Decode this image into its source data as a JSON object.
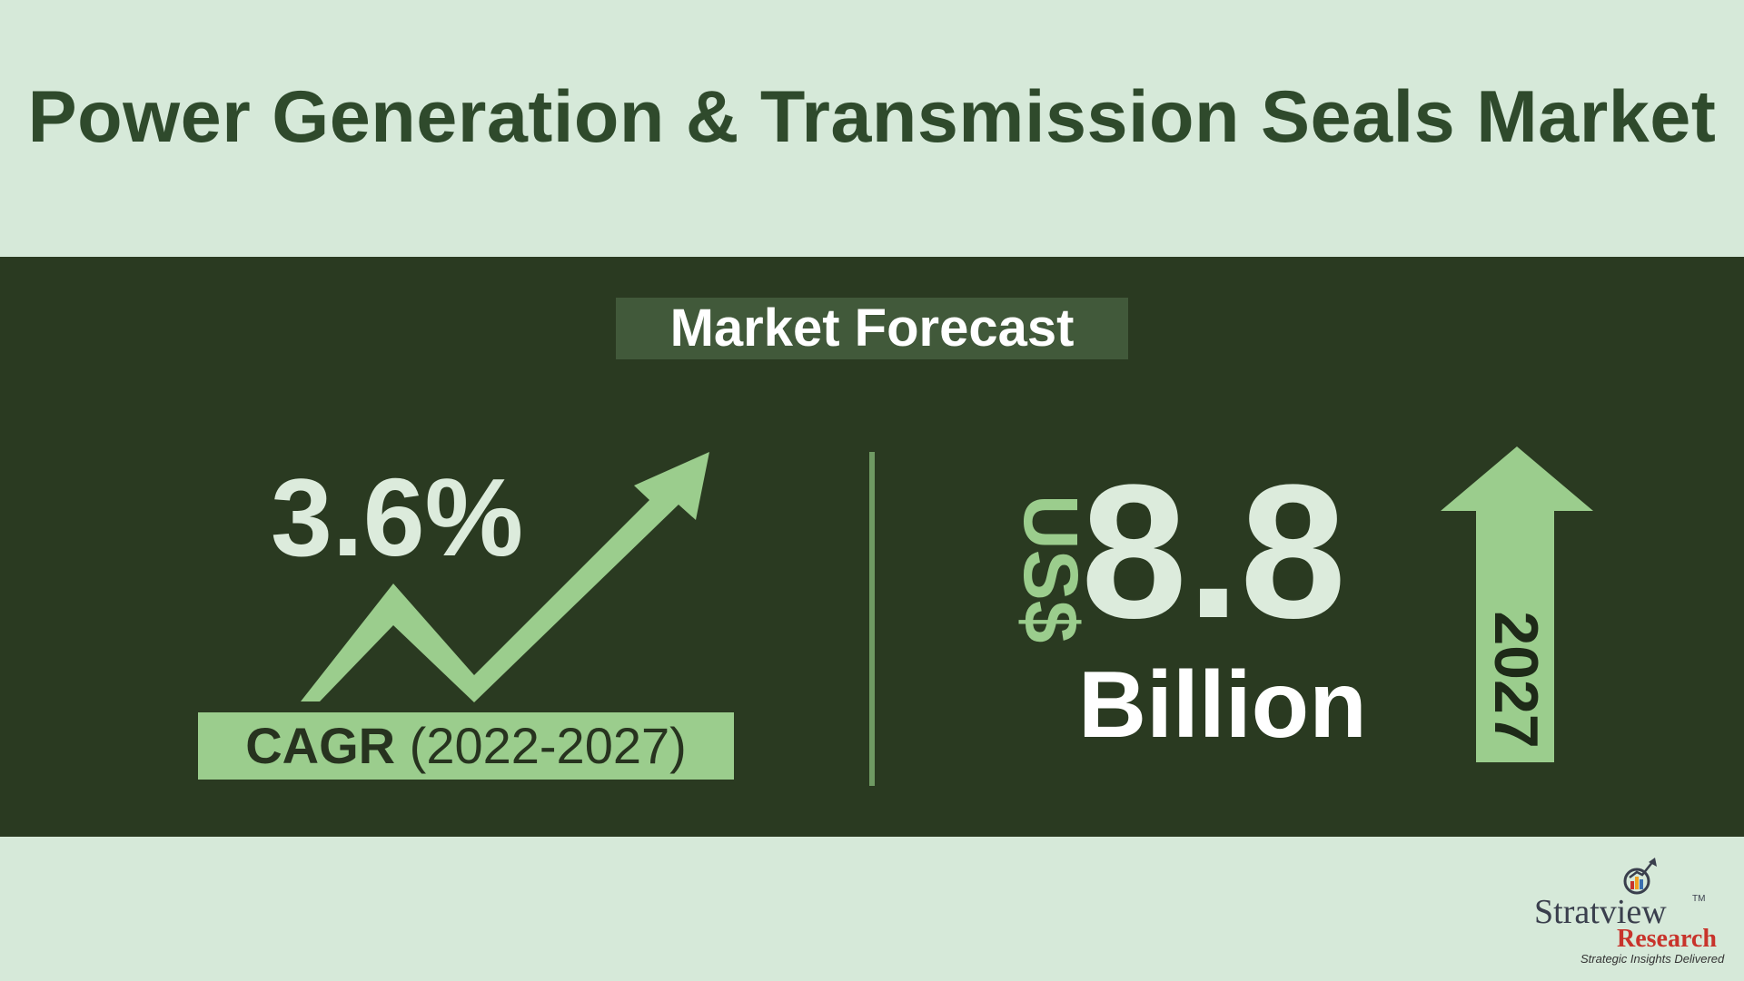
{
  "title": "Power Generation & Transmission Seals Market",
  "forecast_label": "Market Forecast",
  "cagr": {
    "value": "3.6%",
    "label_bold": "CAGR",
    "label_period": "(2022-2027)"
  },
  "market": {
    "currency": "US$",
    "value": "8.8",
    "unit": "Billion",
    "year": "2027"
  },
  "logo": {
    "name": "Stratview",
    "tm": "TM",
    "sub": "Research",
    "tagline": "Strategic Insights Delivered"
  },
  "colors": {
    "background": "#d6e9d9",
    "band": "#2a3a21",
    "accent": "#9bcd8d",
    "title": "#2f4a2c",
    "logo_red": "#c8332b"
  },
  "icons": [
    "trend-up-arrow-icon",
    "up-arrow-icon",
    "magnifier-chart-icon"
  ]
}
